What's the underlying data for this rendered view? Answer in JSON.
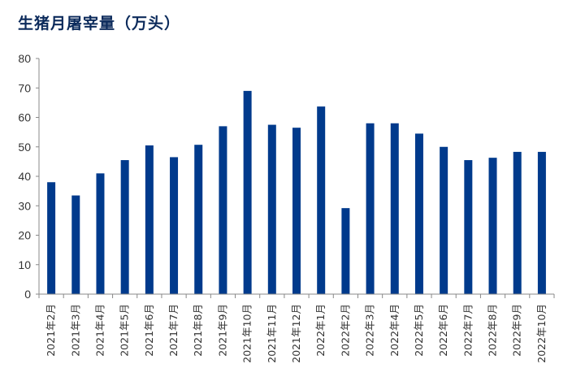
{
  "chart_data": {
    "type": "bar",
    "title": "生猪月屠宰量（万头）",
    "categories": [
      "2021年2月",
      "2021年3月",
      "2021年4月",
      "2021年5月",
      "2021年6月",
      "2021年7月",
      "2021年8月",
      "2021年9月",
      "2021年10月",
      "2021年11月",
      "2021年12月",
      "2022年1月",
      "2022年2月",
      "2022年3月",
      "2022年4月",
      "2022年5月",
      "2022年6月",
      "2022年7月",
      "2022年8月",
      "2022年9月",
      "2022年10月"
    ],
    "values": [
      38,
      33.5,
      41,
      45.5,
      50.5,
      46.5,
      50.7,
      57,
      69,
      57.5,
      56.5,
      63.7,
      29.2,
      58,
      58,
      54.5,
      50,
      45.5,
      46.3,
      48.3,
      48.3
    ],
    "yticks": [
      "0",
      "10",
      "20",
      "30",
      "40",
      "50",
      "60",
      "70",
      "80"
    ],
    "ylim": [
      0,
      80
    ],
    "xlabel": "",
    "ylabel": "",
    "bar_color": "#003a8c",
    "grid": false
  }
}
